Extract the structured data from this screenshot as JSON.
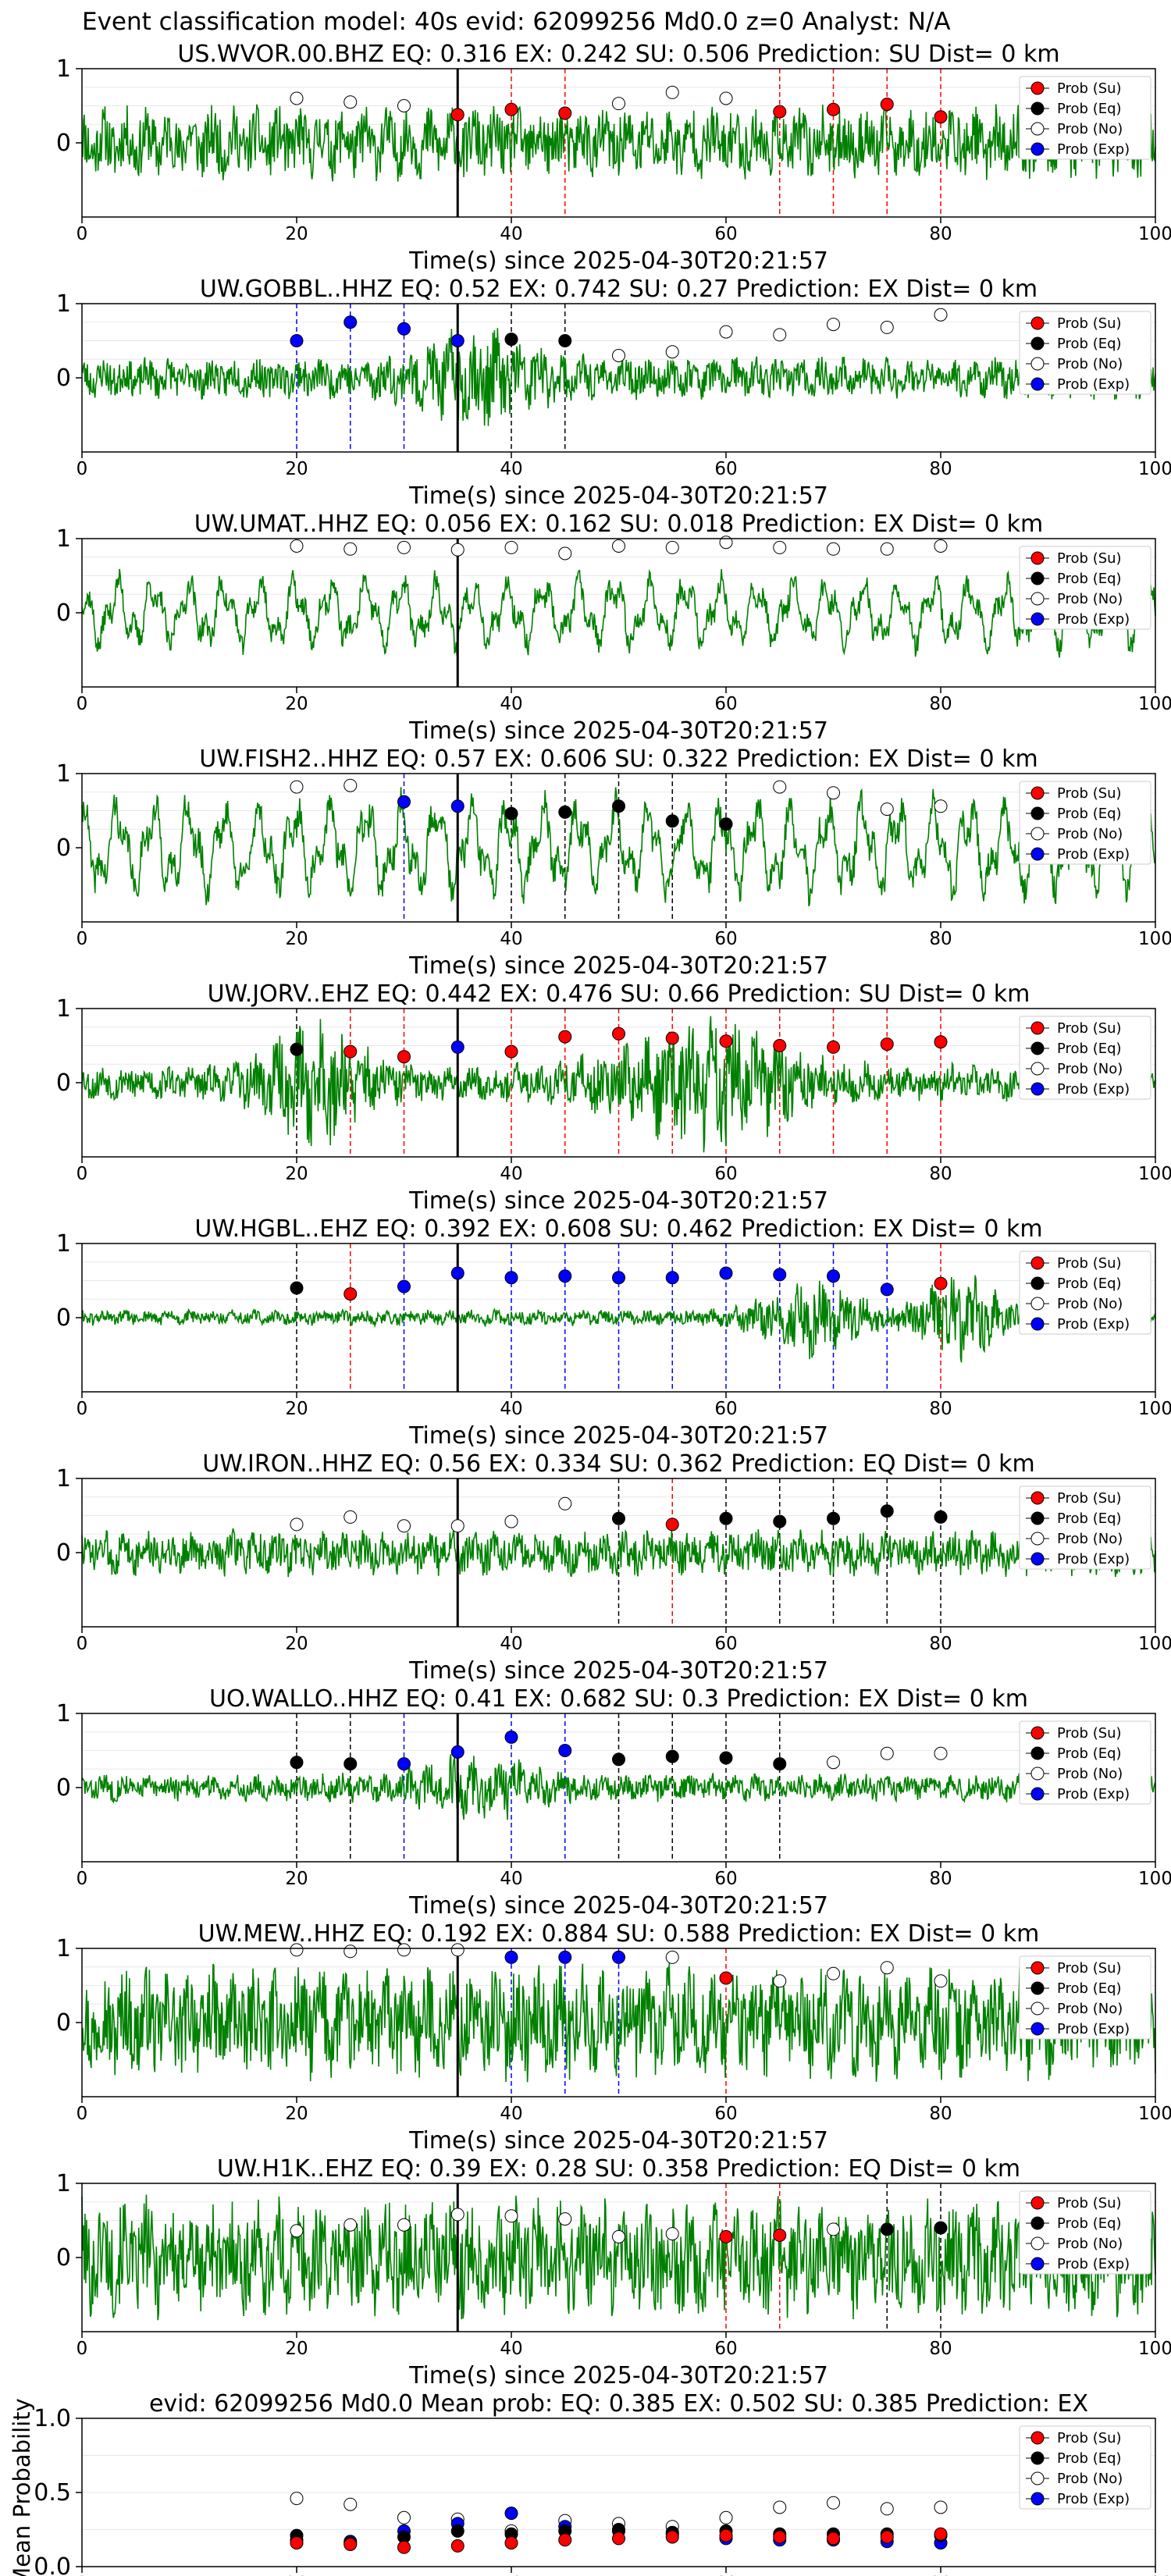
{
  "suptitle": "Event classification model: 40s evid: 62099256 Md0.0 z=0 Analyst: N/A",
  "colors": {
    "waveform": "#008000",
    "su": "#ff0000",
    "eq": "#000000",
    "no": "#ffffff",
    "exp": "#0000ff",
    "su_line": "#ff0000",
    "eq_line": "#000000",
    "exp_line": "#0000ff"
  },
  "legend": [
    "Prob (Su)",
    "Prob (Eq)",
    "Prob (No)",
    "Prob (Exp)"
  ],
  "chart_data": [
    {
      "type": "scatter",
      "title": "US.WVOR.00.BHZ   EQ: 0.316  EX: 0.242  SU: 0.506   Prediction: SU    Dist= 0 km",
      "xlabel": "Time(s) since 2025-04-30T20:21:57",
      "xlim": [
        0,
        100
      ],
      "ylim": [
        -1,
        1
      ],
      "xticks": [
        "0",
        "20",
        "40",
        "60",
        "80",
        "100"
      ],
      "yticks": [
        "0",
        "1"
      ],
      "event_line_x": 35,
      "waveform": {
        "amp": 0.55,
        "style": "steady",
        "seed": 11
      },
      "x": [
        20,
        25,
        30,
        35,
        40,
        45,
        50,
        55,
        60,
        65,
        70,
        75,
        80
      ],
      "classes": [
        "no",
        "no",
        "no",
        "su",
        "su",
        "su",
        "no",
        "no",
        "no",
        "su",
        "su",
        "su",
        "su"
      ],
      "values": [
        0.6,
        0.55,
        0.5,
        0.38,
        0.45,
        0.4,
        0.53,
        0.68,
        0.6,
        0.42,
        0.45,
        0.52,
        0.35
      ]
    },
    {
      "type": "scatter",
      "title": "UW.GOBBL..HHZ   EQ: 0.52  EX: 0.742  SU: 0.27   Prediction: EX    Dist= 0 km",
      "xlabel": "Time(s) since 2025-04-30T20:21:57",
      "xlim": [
        0,
        100
      ],
      "ylim": [
        -1,
        1
      ],
      "xticks": [
        "0",
        "20",
        "40",
        "60",
        "80",
        "100"
      ],
      "yticks": [
        "0",
        "1"
      ],
      "event_line_x": 35,
      "waveform": {
        "amp": 0.45,
        "style": "burst",
        "seed": 23
      },
      "x": [
        20,
        25,
        30,
        35,
        40,
        45,
        50,
        55,
        60,
        65,
        70,
        75,
        80
      ],
      "classes": [
        "exp",
        "exp",
        "exp",
        "exp",
        "eq",
        "eq",
        "no",
        "no",
        "no",
        "no",
        "no",
        "no",
        "no"
      ],
      "values": [
        0.5,
        0.75,
        0.66,
        0.5,
        0.52,
        0.5,
        0.3,
        0.35,
        0.62,
        0.58,
        0.72,
        0.68,
        0.85
      ]
    },
    {
      "type": "scatter",
      "title": "UW.UMAT..HHZ   EQ: 0.056  EX: 0.162  SU: 0.018   Prediction: EX    Dist= 0 km",
      "xlabel": "Time(s) since 2025-04-30T20:21:57",
      "xlim": [
        0,
        100
      ],
      "ylim": [
        -1,
        1
      ],
      "xticks": [
        "0",
        "20",
        "40",
        "60",
        "80",
        "100"
      ],
      "yticks": [
        "0",
        "1"
      ],
      "event_line_x": 35,
      "waveform": {
        "amp": 0.55,
        "style": "smooth",
        "seed": 37
      },
      "x": [
        20,
        25,
        30,
        35,
        40,
        45,
        50,
        55,
        60,
        65,
        70,
        75,
        80
      ],
      "classes": [
        "no",
        "no",
        "no",
        "no",
        "no",
        "no",
        "no",
        "no",
        "no",
        "no",
        "no",
        "no",
        "no"
      ],
      "values": [
        0.9,
        0.86,
        0.88,
        0.85,
        0.88,
        0.8,
        0.9,
        0.88,
        0.95,
        0.88,
        0.86,
        0.86,
        0.9
      ]
    },
    {
      "type": "scatter",
      "title": "UW.FISH2..HHZ   EQ: 0.57  EX: 0.606  SU: 0.322   Prediction: EX    Dist= 0 km",
      "xlabel": "Time(s) since 2025-04-30T20:21:57",
      "xlim": [
        0,
        100
      ],
      "ylim": [
        -1,
        1
      ],
      "xticks": [
        "0",
        "20",
        "40",
        "60",
        "80",
        "100"
      ],
      "yticks": [
        "0",
        "1"
      ],
      "event_line_x": 35,
      "waveform": {
        "amp": 0.75,
        "style": "smooth",
        "seed": 41
      },
      "x": [
        20,
        25,
        30,
        35,
        40,
        45,
        50,
        55,
        60,
        65,
        70,
        75,
        80
      ],
      "classes": [
        "no",
        "no",
        "exp",
        "exp",
        "eq",
        "eq",
        "eq",
        "eq",
        "eq",
        "no",
        "no",
        "no",
        "no"
      ],
      "values": [
        0.82,
        0.84,
        0.62,
        0.56,
        0.46,
        0.48,
        0.56,
        0.36,
        0.32,
        0.82,
        0.74,
        0.52,
        0.56
      ]
    },
    {
      "type": "scatter",
      "title": "UW.JORV..EHZ   EQ: 0.442  EX: 0.476  SU: 0.66   Prediction: SU    Dist= 0 km",
      "xlabel": "Time(s) since 2025-04-30T20:21:57",
      "xlim": [
        0,
        100
      ],
      "ylim": [
        -1,
        1
      ],
      "xticks": [
        "0",
        "20",
        "40",
        "60",
        "80",
        "100"
      ],
      "yticks": [
        "0",
        "1"
      ],
      "event_line_x": 35,
      "waveform": {
        "amp": 0.55,
        "style": "double",
        "seed": 53
      },
      "x": [
        20,
        25,
        30,
        35,
        40,
        45,
        50,
        55,
        60,
        65,
        70,
        75,
        80
      ],
      "classes": [
        "eq",
        "su",
        "su",
        "exp",
        "su",
        "su",
        "su",
        "su",
        "su",
        "su",
        "su",
        "su",
        "su"
      ],
      "values": [
        0.45,
        0.42,
        0.35,
        0.48,
        0.42,
        0.62,
        0.66,
        0.6,
        0.56,
        0.5,
        0.48,
        0.52,
        0.55
      ]
    },
    {
      "type": "scatter",
      "title": "UW.HGBL..EHZ   EQ: 0.392  EX: 0.608  SU: 0.462   Prediction: EX    Dist= 0 km",
      "xlabel": "Time(s) since 2025-04-30T20:21:57",
      "xlim": [
        0,
        100
      ],
      "ylim": [
        -1,
        1
      ],
      "xticks": [
        "0",
        "20",
        "40",
        "60",
        "80",
        "100"
      ],
      "yticks": [
        "0",
        "1"
      ],
      "event_line_x": 35,
      "waveform": {
        "amp": 0.2,
        "style": "late",
        "seed": 61
      },
      "x": [
        20,
        25,
        30,
        35,
        40,
        45,
        50,
        55,
        60,
        65,
        70,
        75,
        80
      ],
      "classes": [
        "eq",
        "su",
        "exp",
        "exp",
        "exp",
        "exp",
        "exp",
        "exp",
        "exp",
        "exp",
        "exp",
        "exp",
        "su"
      ],
      "values": [
        0.4,
        0.32,
        0.42,
        0.6,
        0.54,
        0.56,
        0.54,
        0.54,
        0.6,
        0.58,
        0.56,
        0.38,
        0.46
      ]
    },
    {
      "type": "scatter",
      "title": "UW.IRON..HHZ   EQ: 0.56  EX: 0.334  SU: 0.362   Prediction: EQ    Dist= 0 km",
      "xlabel": "Time(s) since 2025-04-30T20:21:57",
      "xlim": [
        0,
        100
      ],
      "ylim": [
        -1,
        1
      ],
      "xticks": [
        "0",
        "20",
        "40",
        "60",
        "80",
        "100"
      ],
      "yticks": [
        "0",
        "1"
      ],
      "event_line_x": 35,
      "waveform": {
        "amp": 0.35,
        "style": "steady",
        "seed": 73
      },
      "x": [
        20,
        25,
        30,
        35,
        40,
        45,
        50,
        55,
        60,
        65,
        70,
        75,
        80
      ],
      "classes": [
        "no",
        "no",
        "no",
        "no",
        "no",
        "no",
        "eq",
        "su",
        "eq",
        "eq",
        "eq",
        "eq",
        "eq"
      ],
      "values": [
        0.38,
        0.48,
        0.36,
        0.36,
        0.42,
        0.66,
        0.46,
        0.38,
        0.46,
        0.42,
        0.46,
        0.56,
        0.48
      ]
    },
    {
      "type": "scatter",
      "title": "UO.WALLO..HHZ   EQ: 0.41  EX: 0.682  SU: 0.3   Prediction: EX    Dist= 0 km",
      "xlabel": "Time(s) since 2025-04-30T20:21:57",
      "xlim": [
        0,
        100
      ],
      "ylim": [
        -1,
        1
      ],
      "xticks": [
        "0",
        "20",
        "40",
        "60",
        "80",
        "100"
      ],
      "yticks": [
        "0",
        "1"
      ],
      "event_line_x": 35,
      "waveform": {
        "amp": 0.3,
        "style": "burst",
        "seed": 83
      },
      "x": [
        20,
        25,
        30,
        35,
        40,
        45,
        50,
        55,
        60,
        65,
        70,
        75,
        80
      ],
      "classes": [
        "eq",
        "eq",
        "exp",
        "exp",
        "exp",
        "exp",
        "eq",
        "eq",
        "eq",
        "eq",
        "no",
        "no",
        "no"
      ],
      "values": [
        0.34,
        0.32,
        0.32,
        0.48,
        0.68,
        0.5,
        0.38,
        0.42,
        0.4,
        0.32,
        0.34,
        0.46,
        0.46
      ]
    },
    {
      "type": "scatter",
      "title": "UW.MEW..HHZ   EQ: 0.192  EX: 0.884  SU: 0.588   Prediction: EX    Dist= 0 km",
      "xlabel": "Time(s) since 2025-04-30T20:21:57",
      "xlim": [
        0,
        100
      ],
      "ylim": [
        -1,
        1
      ],
      "xticks": [
        "0",
        "20",
        "40",
        "60",
        "80",
        "100"
      ],
      "yticks": [
        "0",
        "1"
      ],
      "event_line_x": 35,
      "waveform": {
        "amp": 0.85,
        "style": "steady",
        "seed": 97
      },
      "x": [
        20,
        25,
        30,
        35,
        40,
        45,
        50,
        55,
        60,
        65,
        70,
        75,
        80
      ],
      "classes": [
        "no",
        "no",
        "no",
        "no",
        "exp",
        "exp",
        "exp",
        "no",
        "su",
        "no",
        "no",
        "no",
        "no"
      ],
      "values": [
        0.98,
        0.96,
        0.98,
        0.98,
        0.88,
        0.88,
        0.88,
        0.88,
        0.6,
        0.56,
        0.66,
        0.74,
        0.56
      ]
    },
    {
      "type": "scatter",
      "title": "UW.H1K..EHZ   EQ: 0.39  EX: 0.28  SU: 0.358   Prediction: EQ    Dist= 0 km",
      "xlabel": "Time(s) since 2025-04-30T20:21:57",
      "xlim": [
        0,
        100
      ],
      "ylim": [
        -1,
        1
      ],
      "xticks": [
        "0",
        "20",
        "40",
        "60",
        "80",
        "100"
      ],
      "yticks": [
        "0",
        "1"
      ],
      "event_line_x": 35,
      "waveform": {
        "amp": 0.9,
        "style": "steady",
        "seed": 101
      },
      "x": [
        20,
        25,
        30,
        35,
        40,
        45,
        50,
        55,
        60,
        65,
        70,
        75,
        80
      ],
      "classes": [
        "no",
        "no",
        "no",
        "no",
        "no",
        "no",
        "no",
        "no",
        "su",
        "su",
        "no",
        "eq",
        "eq"
      ],
      "values": [
        0.36,
        0.44,
        0.44,
        0.58,
        0.56,
        0.52,
        0.28,
        0.32,
        0.28,
        0.3,
        0.38,
        0.38,
        0.4
      ]
    },
    {
      "type": "scatter",
      "title": "evid: 62099256  Md0.0   Mean prob:   EQ: 0.385  EX: 0.502  SU: 0.385   Prediction: EX",
      "xlabel": "",
      "ylabel": "Mean Probability",
      "xlim": [
        0,
        100
      ],
      "ylim": [
        0,
        1
      ],
      "xticks": [
        "0",
        "20",
        "40",
        "60",
        "80",
        "100"
      ],
      "yticks": [
        "0.0",
        "0.5",
        "1.0"
      ],
      "x": [
        20,
        25,
        30,
        35,
        40,
        45,
        50,
        55,
        60,
        65,
        70,
        75,
        80
      ],
      "series": [
        {
          "name": "Prob (No)",
          "cls": "no",
          "values": [
            0.46,
            0.42,
            0.33,
            0.32,
            0.24,
            0.31,
            0.29,
            0.27,
            0.33,
            0.4,
            0.43,
            0.39,
            0.4
          ]
        },
        {
          "name": "Prob (Exp)",
          "cls": "exp",
          "values": [
            0.18,
            0.17,
            0.24,
            0.29,
            0.36,
            0.27,
            0.24,
            0.22,
            0.19,
            0.18,
            0.18,
            0.17,
            0.16
          ]
        },
        {
          "name": "Prob (Eq)",
          "cls": "eq",
          "values": [
            0.21,
            0.16,
            0.2,
            0.24,
            0.22,
            0.24,
            0.25,
            0.23,
            0.24,
            0.22,
            0.22,
            0.22,
            0.21
          ]
        },
        {
          "name": "Prob (Su)",
          "cls": "su",
          "values": [
            0.16,
            0.15,
            0.13,
            0.14,
            0.16,
            0.18,
            0.19,
            0.2,
            0.21,
            0.2,
            0.19,
            0.2,
            0.22
          ]
        }
      ]
    }
  ]
}
